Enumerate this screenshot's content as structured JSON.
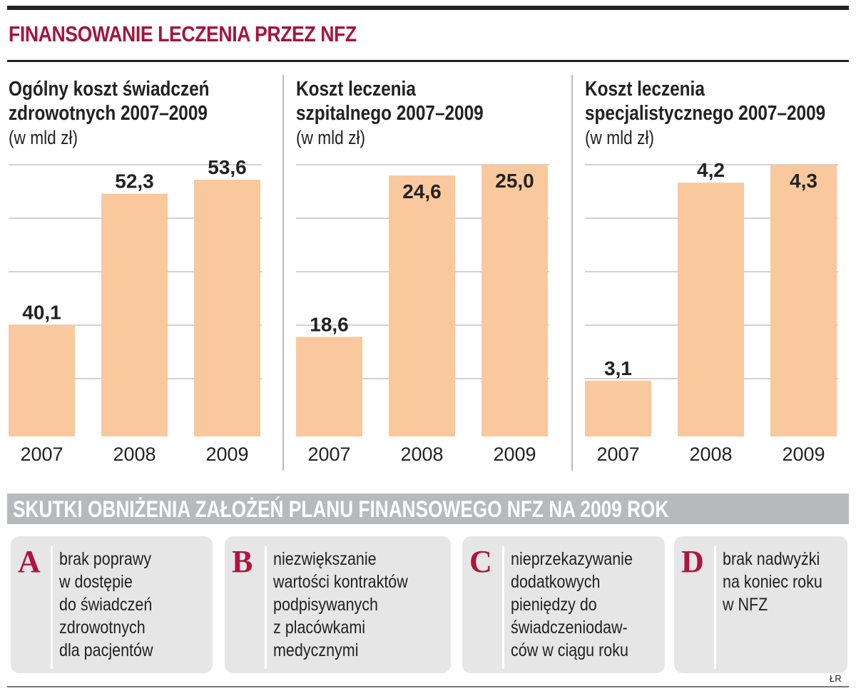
{
  "title": "FINANSOWANIE LECZENIA PRZEZ NFZ",
  "colors": {
    "title": "#a3163c",
    "bar": "#f9c89c",
    "band": "#b8b9bb",
    "box": "#e6e6e7",
    "letter": "#b0143d"
  },
  "chart_data": [
    {
      "type": "bar",
      "title_lines": [
        "Ogólny koszt świadczeń",
        "zdrowotnych 2007–2009"
      ],
      "unit": "(w mld zł)",
      "categories": [
        "2007",
        "2008",
        "2009"
      ],
      "values": [
        40.1,
        52.3,
        53.6
      ],
      "labels": [
        "40,1",
        "52,3",
        "53,6"
      ],
      "ylim": [
        29.7,
        55.0
      ],
      "grid": true
    },
    {
      "type": "bar",
      "title_lines": [
        "Koszt leczenia",
        "szpitalnego 2007–2009"
      ],
      "unit": "(w mld zł)",
      "categories": [
        "2007",
        "2008",
        "2009"
      ],
      "values": [
        18.6,
        24.6,
        25.0
      ],
      "labels": [
        "18,6",
        "24,6",
        "25,0"
      ],
      "ylim": [
        14.9,
        25.0
      ],
      "grid": true
    },
    {
      "type": "bar",
      "title_lines": [
        "Koszt leczenia",
        "specjalistycznego 2007–2009"
      ],
      "unit": "(w mld zł)",
      "categories": [
        "2007",
        "2008",
        "2009"
      ],
      "values": [
        3.1,
        4.2,
        4.3
      ],
      "labels": [
        "3,1",
        "4,2",
        "4,3"
      ],
      "ylim": [
        2.79,
        4.3
      ],
      "grid": true
    }
  ],
  "effects": {
    "heading": "SKUTKI OBNIŻENIA ZAŁOŻEŃ PLANU FINANSOWEGO NFZ NA 2009 ROK",
    "items": [
      {
        "letter": "A",
        "lines": [
          "brak poprawy",
          "w dostępie",
          "do świadczeń",
          "zdrowotnych",
          "dla pacjentów"
        ]
      },
      {
        "letter": "B",
        "lines": [
          "niezwiększanie",
          "wartości kontraktów",
          "podpisywanych",
          "z placówkami",
          "medycznymi"
        ]
      },
      {
        "letter": "C",
        "lines": [
          "nieprzekazywanie",
          "dodatkowych",
          "pieniędzy do",
          "świadczeniodaw-",
          "ców w ciągu roku"
        ]
      },
      {
        "letter": "D",
        "lines": [
          "brak nadwyżki",
          "na koniec roku",
          "w NFZ"
        ]
      }
    ]
  },
  "credit": "ŁR"
}
